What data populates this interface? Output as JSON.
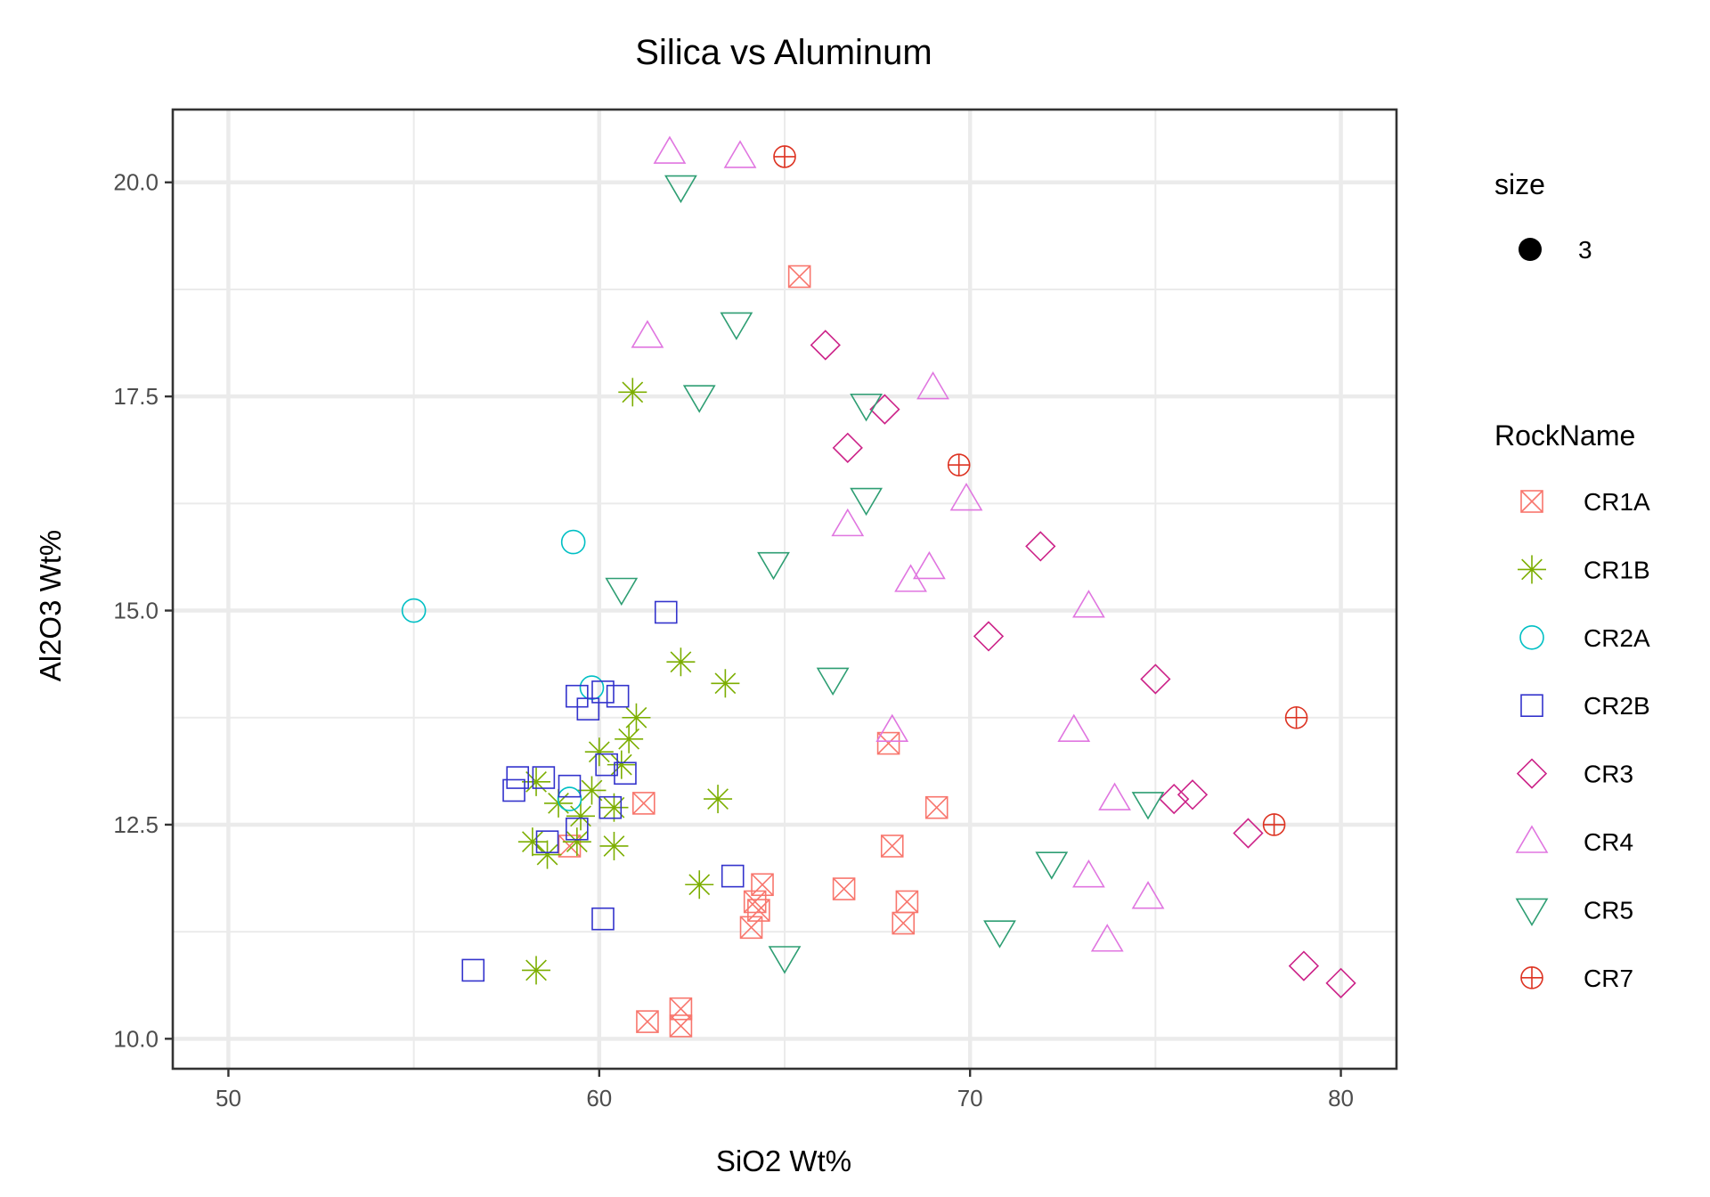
{
  "chart_data": {
    "type": "scatter",
    "title": "Silica vs Aluminum",
    "xlabel": "SiO2 Wt%",
    "ylabel": "Al2O3 Wt%",
    "xlim": [
      48.5,
      81.5
    ],
    "ylim": [
      9.65,
      20.85
    ],
    "x_ticks": [
      50,
      60,
      70,
      80
    ],
    "x_tick_labels": [
      "50",
      "60",
      "70",
      "80"
    ],
    "y_ticks": [
      10,
      12.5,
      15,
      17.5,
      20
    ],
    "y_tick_labels": [
      "10.0",
      "12.5",
      "15.0",
      "17.5",
      "20.0"
    ],
    "grid": true,
    "legend_position": "right",
    "legend_size": {
      "title": "size",
      "label": "3"
    },
    "legend_title": "RockName",
    "series": [
      {
        "name": "CR1A",
        "shape": "square-cross",
        "color": "#F8766D",
        "points": [
          [
            65.4,
            18.9
          ],
          [
            67.8,
            13.45
          ],
          [
            61.2,
            12.75
          ],
          [
            59.2,
            12.25
          ],
          [
            69.1,
            12.7
          ],
          [
            67.9,
            12.25
          ],
          [
            64.4,
            11.8
          ],
          [
            64.2,
            11.6
          ],
          [
            66.6,
            11.75
          ],
          [
            64.3,
            11.5
          ],
          [
            68.3,
            11.6
          ],
          [
            64.1,
            11.3
          ],
          [
            68.2,
            11.35
          ],
          [
            62.2,
            10.35
          ],
          [
            61.3,
            10.2
          ],
          [
            62.2,
            10.15
          ]
        ]
      },
      {
        "name": "CR1B",
        "shape": "asterisk",
        "color": "#7CAE00",
        "points": [
          [
            60.9,
            17.55
          ],
          [
            62.2,
            14.4
          ],
          [
            63.4,
            14.15
          ],
          [
            61.0,
            13.75
          ],
          [
            60.8,
            13.5
          ],
          [
            60.0,
            13.35
          ],
          [
            60.6,
            13.2
          ],
          [
            58.3,
            13.0
          ],
          [
            58.9,
            12.75
          ],
          [
            59.5,
            12.6
          ],
          [
            60.4,
            12.7
          ],
          [
            59.8,
            12.9
          ],
          [
            63.2,
            12.8
          ],
          [
            58.2,
            12.3
          ],
          [
            58.6,
            12.15
          ],
          [
            59.4,
            12.3
          ],
          [
            60.4,
            12.25
          ],
          [
            62.7,
            11.8
          ],
          [
            58.3,
            10.8
          ]
        ]
      },
      {
        "name": "CR2A",
        "shape": "circle",
        "color": "#00BFC4",
        "points": [
          [
            55.0,
            15.0
          ],
          [
            59.3,
            15.8
          ],
          [
            59.8,
            14.1
          ],
          [
            59.2,
            12.8
          ]
        ]
      },
      {
        "name": "CR2B",
        "shape": "square",
        "color": "#3333CC",
        "points": [
          [
            61.8,
            14.98
          ],
          [
            60.1,
            14.05
          ],
          [
            60.5,
            14.0
          ],
          [
            59.4,
            14.0
          ],
          [
            59.7,
            13.85
          ],
          [
            60.2,
            13.2
          ],
          [
            60.7,
            13.1
          ],
          [
            57.8,
            13.05
          ],
          [
            58.5,
            13.05
          ],
          [
            57.7,
            12.9
          ],
          [
            59.2,
            12.95
          ],
          [
            60.3,
            12.7
          ],
          [
            59.4,
            12.45
          ],
          [
            58.6,
            12.3
          ],
          [
            63.6,
            11.9
          ],
          [
            60.1,
            11.4
          ],
          [
            56.6,
            10.8
          ]
        ]
      },
      {
        "name": "CR3",
        "shape": "diamond",
        "color": "#CC2288",
        "points": [
          [
            66.1,
            18.1
          ],
          [
            67.7,
            17.35
          ],
          [
            66.7,
            16.9
          ],
          [
            71.9,
            15.75
          ],
          [
            70.5,
            14.7
          ],
          [
            75.0,
            14.2
          ],
          [
            75.5,
            12.8
          ],
          [
            76.0,
            12.85
          ],
          [
            77.5,
            12.4
          ],
          [
            79.0,
            10.85
          ],
          [
            80.0,
            10.65
          ]
        ]
      },
      {
        "name": "CR4",
        "shape": "triangle",
        "color": "#E076E0",
        "points": [
          [
            61.9,
            20.35
          ],
          [
            63.8,
            20.3
          ],
          [
            61.3,
            18.2
          ],
          [
            69.0,
            17.6
          ],
          [
            69.9,
            16.3
          ],
          [
            66.7,
            16.0
          ],
          [
            68.9,
            15.5
          ],
          [
            68.4,
            15.35
          ],
          [
            73.2,
            15.05
          ],
          [
            67.9,
            13.6
          ],
          [
            72.8,
            13.6
          ],
          [
            73.9,
            12.8
          ],
          [
            73.2,
            11.9
          ],
          [
            74.8,
            11.65
          ],
          [
            73.7,
            11.15
          ]
        ]
      },
      {
        "name": "CR5",
        "shape": "triangle-down",
        "color": "#2E9E73",
        "points": [
          [
            62.2,
            19.95
          ],
          [
            63.7,
            18.35
          ],
          [
            62.7,
            17.5
          ],
          [
            67.2,
            17.4
          ],
          [
            67.2,
            16.3
          ],
          [
            64.7,
            15.55
          ],
          [
            60.6,
            15.25
          ],
          [
            66.3,
            14.2
          ],
          [
            74.8,
            12.75
          ],
          [
            72.2,
            12.05
          ],
          [
            70.8,
            11.25
          ],
          [
            65.0,
            10.95
          ]
        ]
      },
      {
        "name": "CR7",
        "shape": "circle-plus",
        "color": "#DD3322",
        "points": [
          [
            65.0,
            20.3
          ],
          [
            69.7,
            16.7
          ],
          [
            78.8,
            13.75
          ],
          [
            78.2,
            12.5
          ]
        ]
      }
    ]
  }
}
